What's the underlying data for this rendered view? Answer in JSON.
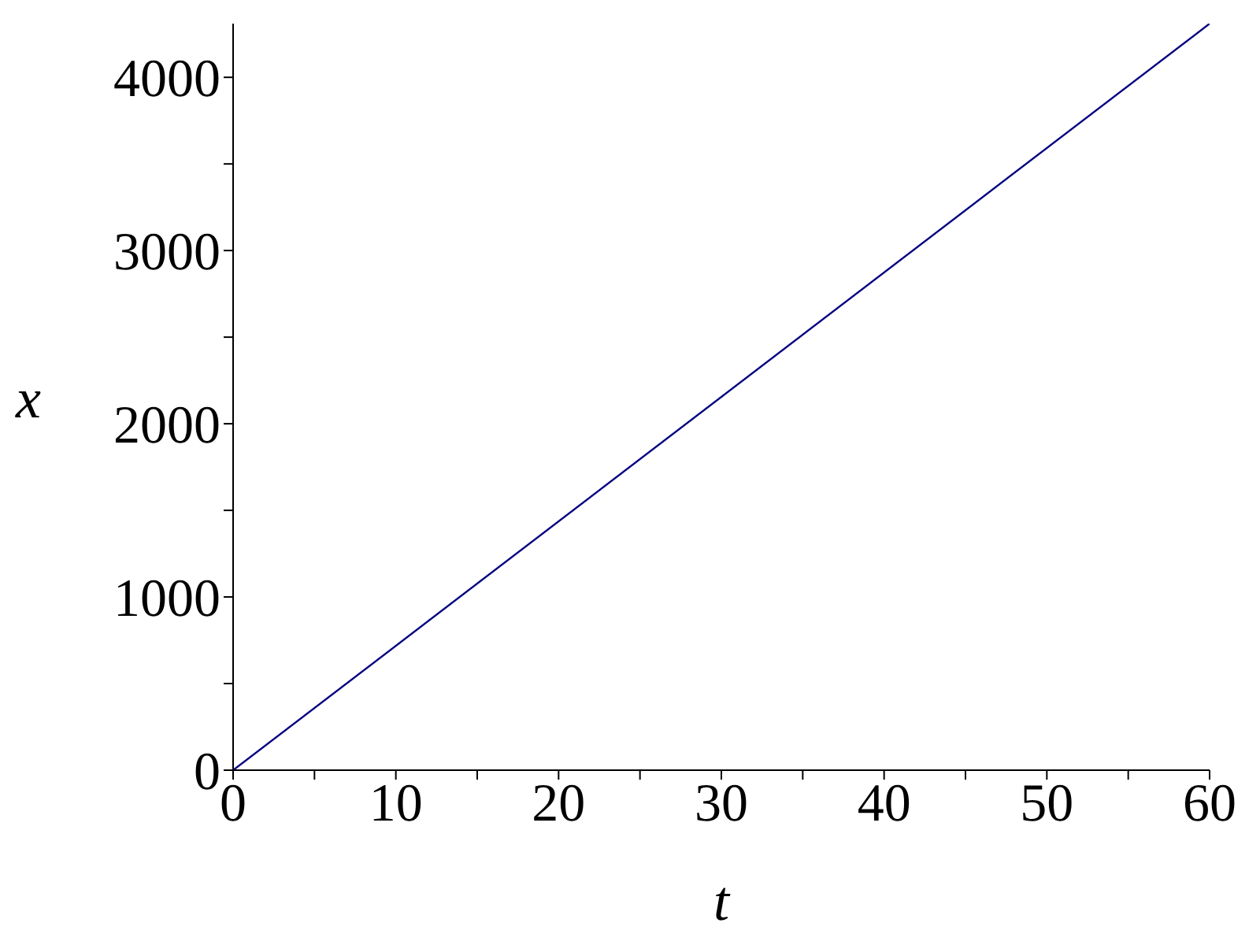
{
  "chart_data": {
    "type": "line",
    "xlabel": "t",
    "ylabel": "x",
    "x": [
      0,
      60
    ],
    "series": [
      {
        "color": "#000080",
        "values": [
          0,
          4310
        ]
      }
    ],
    "xlim": [
      0,
      60
    ],
    "ylim": [
      0,
      4310
    ],
    "xticks": [
      0,
      {
        "value": 5,
        "label": null
      },
      10,
      {
        "value": 15,
        "label": null
      },
      20,
      {
        "value": 25,
        "label": null
      },
      30,
      {
        "value": 35,
        "label": null
      },
      40,
      {
        "value": 45,
        "label": null
      },
      50,
      {
        "value": 55,
        "label": null
      },
      60
    ],
    "yticks": [
      0,
      {
        "value": 500,
        "label": null
      },
      1000,
      {
        "value": 1500,
        "label": null
      },
      2000,
      {
        "value": 2500,
        "label": null
      },
      3000,
      {
        "value": 3500,
        "label": null
      },
      4000
    ],
    "grid": false,
    "legend": false,
    "marker": "none",
    "line_style": "solid"
  }
}
